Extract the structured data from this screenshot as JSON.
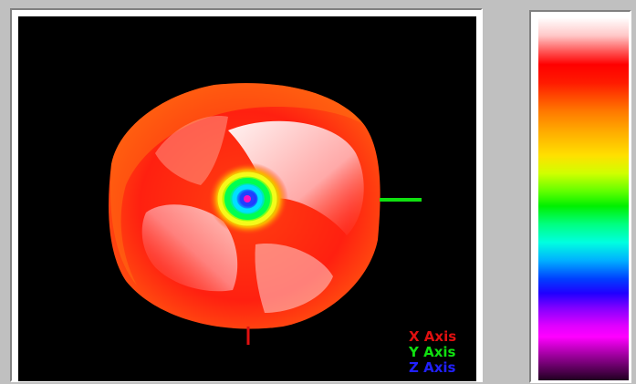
{
  "viewer": {
    "axes": {
      "x_label": "X Axis",
      "y_label": "Y Axis",
      "z_label": "Z Axis",
      "x_color": "#e01010",
      "y_color": "#10e010",
      "z_color": "#2020ff"
    },
    "background_color": "#000000",
    "model_primary_color": "#ff2a10"
  },
  "colorbar": {
    "orientation": "vertical",
    "top_color": "#ffffff",
    "bottom_color": "#200020"
  }
}
